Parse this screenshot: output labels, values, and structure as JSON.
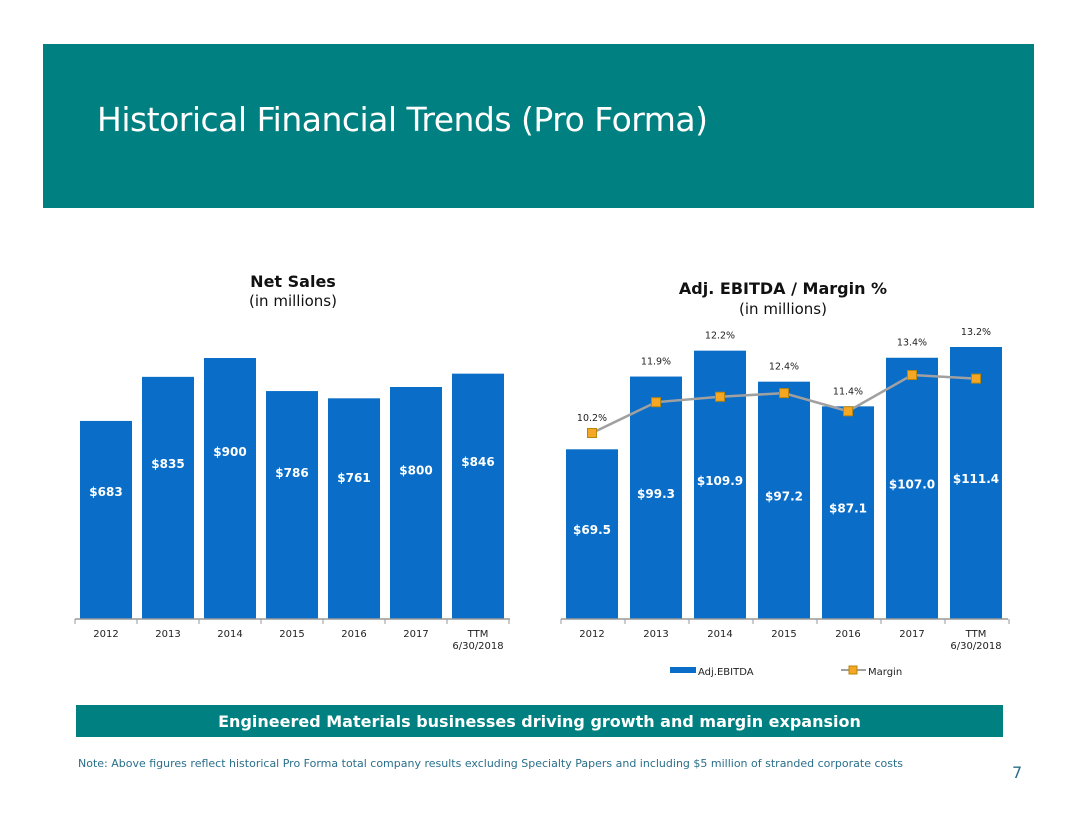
{
  "header": {
    "title": "Historical Financial Trends (Pro Forma)"
  },
  "colors": {
    "teal": "#008080",
    "bar_blue": "#0a6dc7",
    "margin_line": "#a0a0a0",
    "margin_marker": "#f5a623"
  },
  "chart_data": [
    {
      "type": "bar",
      "title": "Net Sales",
      "subtitle": "(in millions)",
      "categories": [
        "2012",
        "2013",
        "2014",
        "2015",
        "2016",
        "2017",
        "TTM 6/30/2018"
      ],
      "category_lines": [
        [
          "2012"
        ],
        [
          "2013"
        ],
        [
          "2014"
        ],
        [
          "2015"
        ],
        [
          "2016"
        ],
        [
          "2017"
        ],
        [
          "TTM",
          "6/30/2018"
        ]
      ],
      "values": [
        683,
        835,
        900,
        786,
        761,
        800,
        846
      ],
      "labels": [
        "$683",
        "$835",
        "$900",
        "$786",
        "$761",
        "$800",
        "$846"
      ],
      "ylim": [
        0,
        1000
      ],
      "grid": false,
      "legend": "none"
    },
    {
      "type": "bar",
      "title": "Adj. EBITDA / Margin %",
      "subtitle": "(in millions)",
      "categories": [
        "2012",
        "2013",
        "2014",
        "2015",
        "2016",
        "2017",
        "TTM 6/30/2018"
      ],
      "category_lines": [
        [
          "2012"
        ],
        [
          "2013"
        ],
        [
          "2014"
        ],
        [
          "2015"
        ],
        [
          "2016"
        ],
        [
          "2017"
        ],
        [
          "TTM",
          "6/30/2018"
        ]
      ],
      "series": [
        {
          "name": "Adj.EBITDA",
          "type": "bar",
          "values": [
            69.5,
            99.3,
            109.9,
            97.2,
            87.1,
            107.0,
            111.4
          ],
          "labels": [
            "$69.5",
            "$99.3",
            "$109.9",
            "$97.2",
            "$87.1",
            "$107.0",
            "$111.4"
          ]
        },
        {
          "name": "Margin",
          "type": "line",
          "values": [
            10.2,
            11.9,
            12.2,
            12.4,
            11.4,
            13.4,
            13.2
          ],
          "labels": [
            "10.2%",
            "11.9%",
            "12.2%",
            "12.4%",
            "11.4%",
            "13.4%",
            "13.2%"
          ]
        }
      ],
      "ylim": [
        0,
        120
      ],
      "y2lim": [
        5,
        15
      ],
      "grid": false,
      "legend": "bottom"
    }
  ],
  "tagline": "Engineered Materials businesses driving growth and margin expansion",
  "footnote": "Note: Above figures reflect historical Pro Forma total company results excluding Specialty Papers and including $5 million of stranded corporate costs",
  "page_number": "7"
}
